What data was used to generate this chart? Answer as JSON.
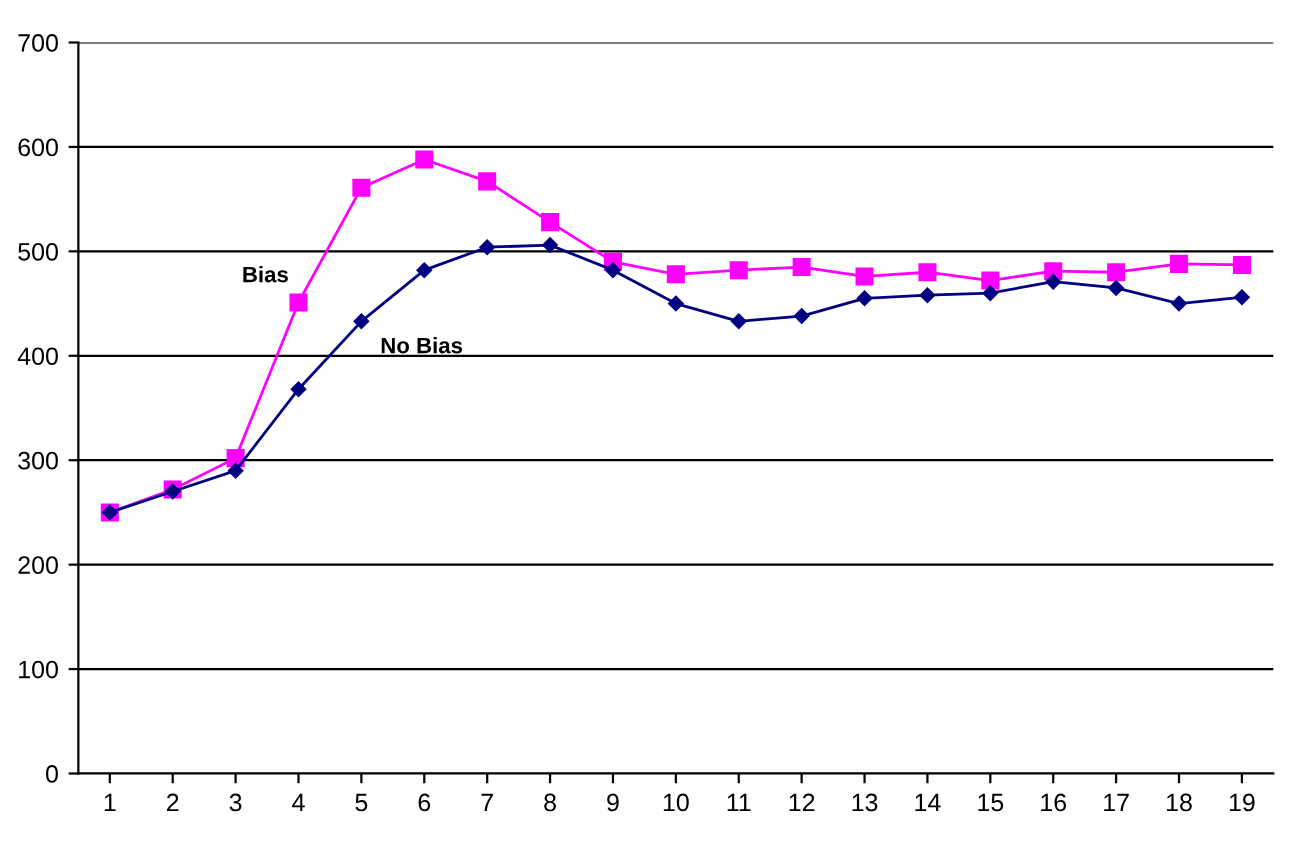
{
  "chart_data": {
    "type": "line",
    "categories": [
      "1",
      "2",
      "3",
      "4",
      "5",
      "6",
      "7",
      "8",
      "9",
      "10",
      "11",
      "12",
      "13",
      "14",
      "15",
      "16",
      "17",
      "18",
      "19"
    ],
    "series": [
      {
        "name": "Bias",
        "color": "#ff00ff",
        "marker": "square",
        "values": [
          250,
          272,
          302,
          451,
          561,
          588,
          567,
          528,
          490,
          478,
          482,
          485,
          476,
          480,
          472,
          481,
          480,
          488,
          487
        ]
      },
      {
        "name": "No Bias",
        "color": "#000080",
        "marker": "diamond",
        "values": [
          250,
          270,
          290,
          368,
          433,
          482,
          504,
          506,
          482,
          450,
          433,
          438,
          455,
          458,
          460,
          471,
          465,
          450,
          456
        ]
      }
    ],
    "ylim": [
      0,
      700
    ],
    "yticks": [
      0,
      100,
      200,
      300,
      400,
      500,
      600,
      700
    ],
    "grid": "y",
    "legend": false
  }
}
